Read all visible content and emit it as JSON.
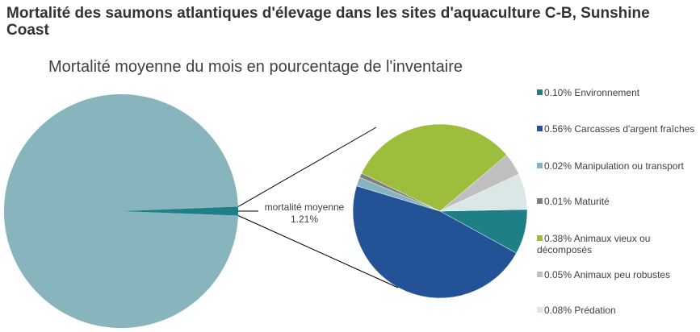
{
  "title": "Mortalité des saumons atlantiques d'élevage dans les sites d'aquaculture C-B, Sunshine Coast",
  "chart_data": {
    "type": "pie",
    "subtype": "pie-of-pie",
    "title": "Mortalité moyenne du mois en pourcentage de l'inventaire",
    "main_pie": {
      "color": "#87b4bd",
      "remainder_value": 98.79,
      "detail_slice": {
        "label": "mortalité moyenne",
        "value_label": "1.21%",
        "value": 1.21,
        "color": "#1f7f87"
      }
    },
    "secondary_pie": {
      "slices": [
        {
          "label": "0.10% Environnement",
          "value": 0.1,
          "color": "#1f7f87"
        },
        {
          "label": "0.56% Carcasses d'argent fraîches",
          "value": 0.56,
          "color": "#235396"
        },
        {
          "label": "0.02% Manipulation ou transport",
          "value": 0.02,
          "color": "#86b3bd"
        },
        {
          "label": "0.01% Maturité",
          "value": 0.01,
          "color": "#7f7f7f"
        },
        {
          "label": "0.38% Animaux vieux ou décomposés",
          "value": 0.38,
          "color": "#9dbd3c"
        },
        {
          "label": "0.05% Animaux peu robustes",
          "value": 0.05,
          "color": "#bfbfbf"
        },
        {
          "label": "0.08% Prédation",
          "value": 0.08,
          "color": "#d9e7e6"
        }
      ]
    },
    "legend_position": "right"
  }
}
